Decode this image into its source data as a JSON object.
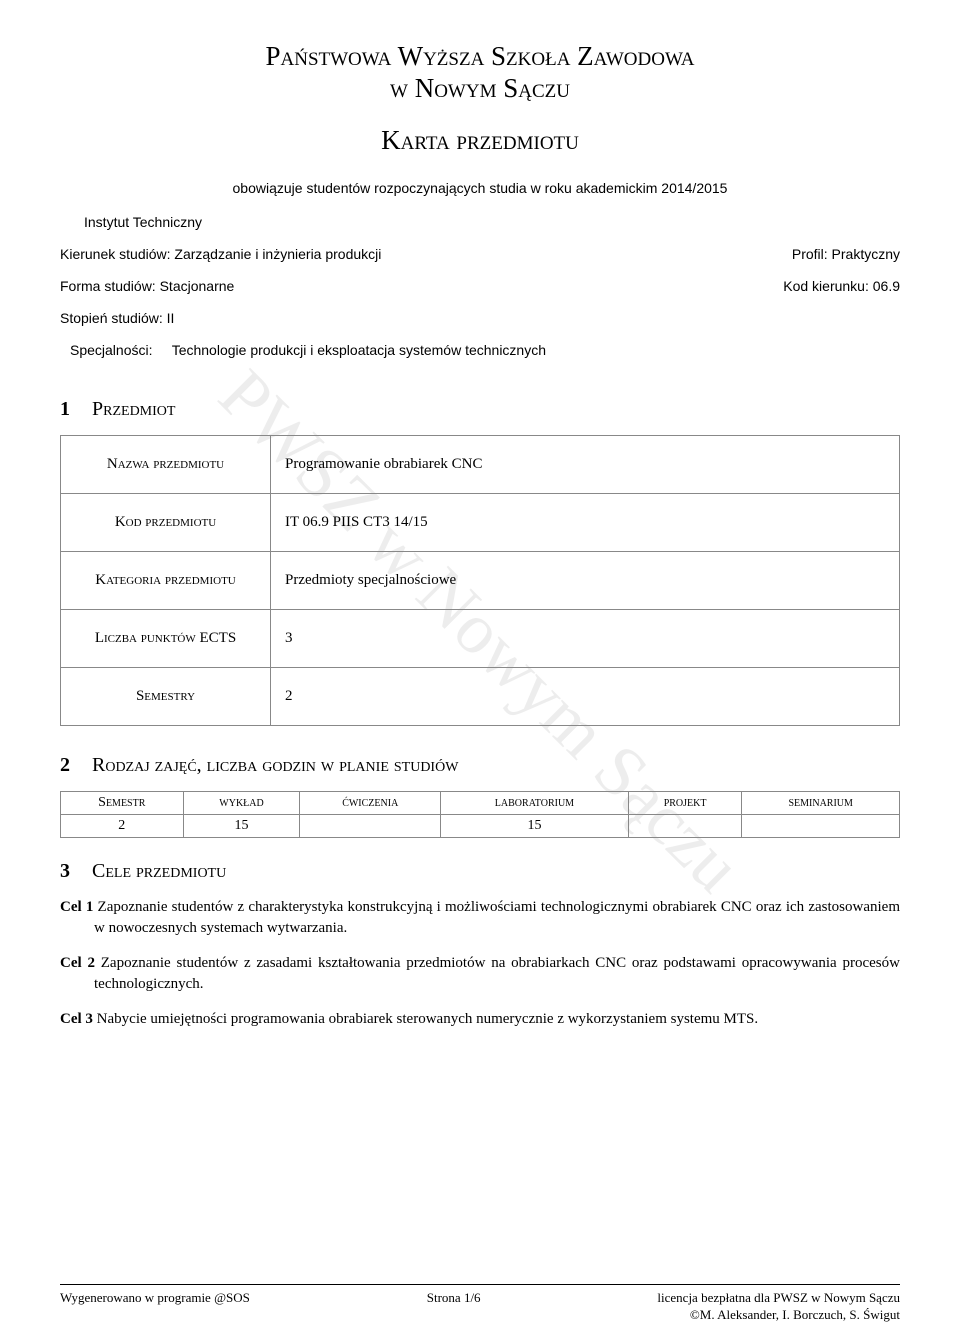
{
  "header": {
    "line1": "Państwowa Wyższa Szkoła Zawodowa",
    "line2": "w Nowym Sączu",
    "card": "Karta przedmiotu"
  },
  "intro": "obowiązuje studentów rozpoczynających studia w roku akademickim 2014/2015",
  "institute": "Instytut Techniczny",
  "kierunek": {
    "label": "Kierunek studiów: Zarządzanie i inżynieria produkcji",
    "right": "Profil: Praktyczny"
  },
  "forma": {
    "label": "Forma studiów: Stacjonarne",
    "right": "Kod kierunku: 06.9"
  },
  "stopien": "Stopień studiów: II",
  "spec": {
    "label": "Specjalności:",
    "value": "Technologie produkcji i eksploatacja systemów technicznych"
  },
  "watermark": "PWSZ w Nowym Sączu",
  "sections": {
    "s1": {
      "num": "1",
      "title": "Przedmiot"
    },
    "s2": {
      "num": "2",
      "title": "Rodzaj zajęć, liczba godzin w planie studiów"
    },
    "s3": {
      "num": "3",
      "title": "Cele przedmiotu"
    }
  },
  "info_rows": [
    {
      "label": "Nazwa przedmiotu",
      "value": "Programowanie obrabiarek CNC"
    },
    {
      "label": "Kod przedmiotu",
      "value": "IT 06.9 PIIS CT3 14/15"
    },
    {
      "label": "Kategoria przedmiotu",
      "value": "Przedmioty specjalnościowe"
    },
    {
      "label": "Liczba punktów ECTS",
      "value": "3"
    },
    {
      "label": "Semestry",
      "value": "2"
    }
  ],
  "schedule": {
    "headers": [
      "Semestr",
      "wykład",
      "ćwiczenia",
      "laboratorium",
      "projekt",
      "seminarium"
    ],
    "row": [
      "2",
      "15",
      "",
      "15",
      "",
      ""
    ]
  },
  "cele": [
    {
      "label": "Cel 1",
      "text": " Zapoznanie studentów z charakterystyka konstrukcyjną i możliwościami technologicznymi obrabiarek CNC oraz ich zastosowaniem w nowoczesnych systemach wytwarzania."
    },
    {
      "label": "Cel 2",
      "text": " Zapoznanie studentów z zasadami kształtowania przedmiotów na obrabiarkach CNC oraz podstawami opracowywania procesów technologicznych."
    },
    {
      "label": "Cel 3",
      "text": " Nabycie umiejętności programowania obrabiarek sterowanych numerycznie z wykorzystaniem systemu MTS."
    }
  ],
  "footer": {
    "left": "Wygenerowano w programie @SOS",
    "center": "Strona 1/6",
    "right1": "licencja bezpłatna dla PWSZ w Nowym Sączu",
    "right2": "©M. Aleksander, I. Borczuch, S. Świgut"
  }
}
